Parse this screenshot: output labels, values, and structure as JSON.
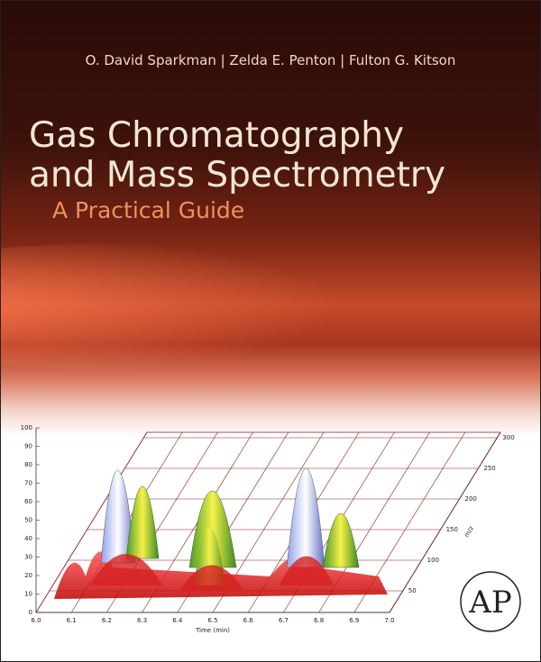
{
  "cover": {
    "authors": "O. David Sparkman | Zelda E. Penton | Fulton G. Kitson",
    "title_lines": [
      "Gas Chromatography",
      "and Mass Spectrometry"
    ],
    "subtitle": "A Practical Guide",
    "publisher_logo": "AP"
  },
  "figure": {
    "y_ticks": [
      "0",
      "10",
      "20",
      "30",
      "40",
      "50",
      "60",
      "70",
      "80",
      "90",
      "100"
    ],
    "x_ticks": [
      "6.0",
      "6.1",
      "6.2",
      "6.3",
      "6.4",
      "6.5",
      "6.6",
      "6.7",
      "6.8",
      "6.9",
      "7.0"
    ],
    "x_label": "Time (min)",
    "mz_ticks": [
      "50",
      "100",
      "150",
      "200",
      "250",
      "300"
    ],
    "mz_label": "m/z"
  }
}
